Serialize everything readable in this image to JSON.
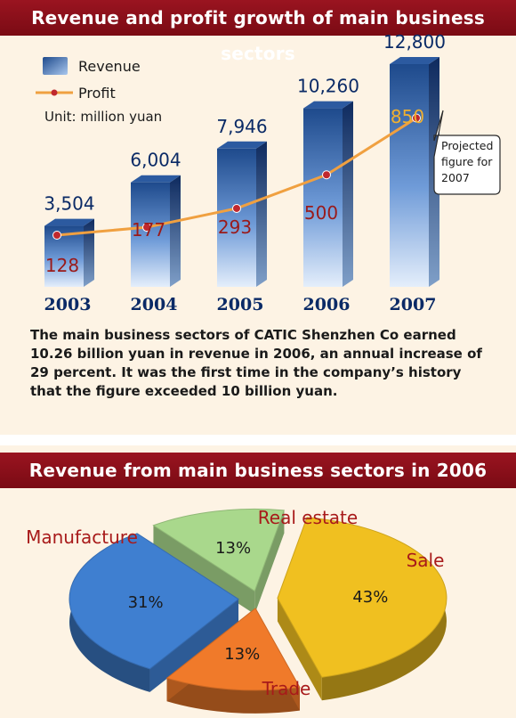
{
  "bar_chart": {
    "title": "Revenue and profit growth of main business sectors",
    "legend": {
      "revenue": "Revenue",
      "profit": "Profit",
      "unit": "Unit: million yuan"
    },
    "callout": [
      "Projected",
      "figure for",
      "2007"
    ]
  },
  "note": "The main business sectors of CATIC Shenzhen Co earned 10.26 billion yuan in revenue in 2006, an annual increase of 29 percent. It was the first time in the company’s history that the figure exceeded 10 billion yuan.",
  "pie_chart": {
    "title": "Revenue from main business sectors in 2006"
  },
  "colors": {
    "banner": "#8b1019",
    "panel": "#fdf3e4",
    "bar_top": "#1e4a8c",
    "bar_bottom": "#cfe0f7",
    "profit_line": "#f0a040",
    "profit_dot": "#c0282e",
    "year_label": "#0a2a66",
    "profit_label": "#9a1a1a",
    "projected_label": "#f0b030",
    "slice_manufacture": "#3f7fd0",
    "slice_realestate": "#a9d88c",
    "slice_sale": "#f0c020",
    "slice_trade": "#f07a2a",
    "category_label": "#a81a1a"
  },
  "chart_data": [
    {
      "type": "bar",
      "categories": [
        "2003",
        "2004",
        "2005",
        "2006",
        "2007"
      ],
      "series": [
        {
          "name": "Revenue",
          "values": [
            3504,
            6004,
            7946,
            10260,
            12800
          ],
          "labels": [
            "3,504",
            "6,004",
            "7,946",
            "10,260",
            "12,800"
          ]
        },
        {
          "name": "Profit",
          "values": [
            128,
            177,
            293,
            500,
            850
          ],
          "labels": [
            "128",
            "177",
            "293",
            "500",
            "850"
          ]
        }
      ],
      "title": "Revenue and profit growth of main business sectors",
      "ylabel": "",
      "unit": "Unit: million yuan",
      "projected_category": "2007",
      "annotation": "Projected figure for 2007",
      "grid": false,
      "legend_position": "top-left"
    },
    {
      "type": "pie",
      "title": "Revenue from main business sectors in 2006",
      "labels": [
        "Sale",
        "Trade",
        "Manufacture",
        "Real estate"
      ],
      "values": [
        43,
        13,
        31,
        13
      ],
      "value_labels": [
        "43%",
        "13%",
        "31%",
        "13%"
      ],
      "exploded": true,
      "three_d": true
    }
  ]
}
